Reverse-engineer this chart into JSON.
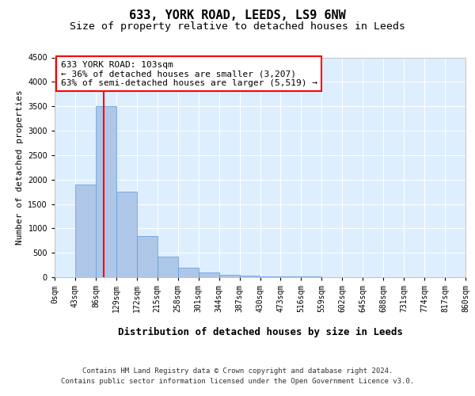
{
  "title1": "633, YORK ROAD, LEEDS, LS9 6NW",
  "title2": "Size of property relative to detached houses in Leeds",
  "xlabel": "Distribution of detached houses by size in Leeds",
  "ylabel": "Number of detached properties",
  "annotation_line1": "633 YORK ROAD: 103sqm",
  "annotation_line2": "← 36% of detached houses are smaller (3,207)",
  "annotation_line3": "63% of semi-detached houses are larger (5,519) →",
  "footnote1": "Contains HM Land Registry data © Crown copyright and database right 2024.",
  "footnote2": "Contains public sector information licensed under the Open Government Licence v3.0.",
  "bin_edges": [
    0,
    43,
    86,
    129,
    172,
    215,
    258,
    301,
    344,
    387,
    430,
    473,
    516,
    559,
    602,
    645,
    688,
    731,
    774,
    817,
    860
  ],
  "bar_values": [
    0,
    1900,
    3500,
    1750,
    850,
    420,
    190,
    90,
    50,
    30,
    20,
    15,
    10,
    8,
    5,
    4,
    3,
    2,
    2,
    1
  ],
  "bar_color": "#aec6e8",
  "bar_edgecolor": "#5b9bd5",
  "red_line_x": 103,
  "ylim": [
    0,
    4500
  ],
  "yticks": [
    0,
    500,
    1000,
    1500,
    2000,
    2500,
    3000,
    3500,
    4000,
    4500
  ],
  "plot_bg_color": "#ddeeff",
  "grid_color": "#ffffff",
  "title1_fontsize": 11,
  "title2_fontsize": 9.5,
  "xlabel_fontsize": 9,
  "ylabel_fontsize": 8,
  "tick_fontsize": 7,
  "annotation_fontsize": 8,
  "footnote_fontsize": 6.5
}
